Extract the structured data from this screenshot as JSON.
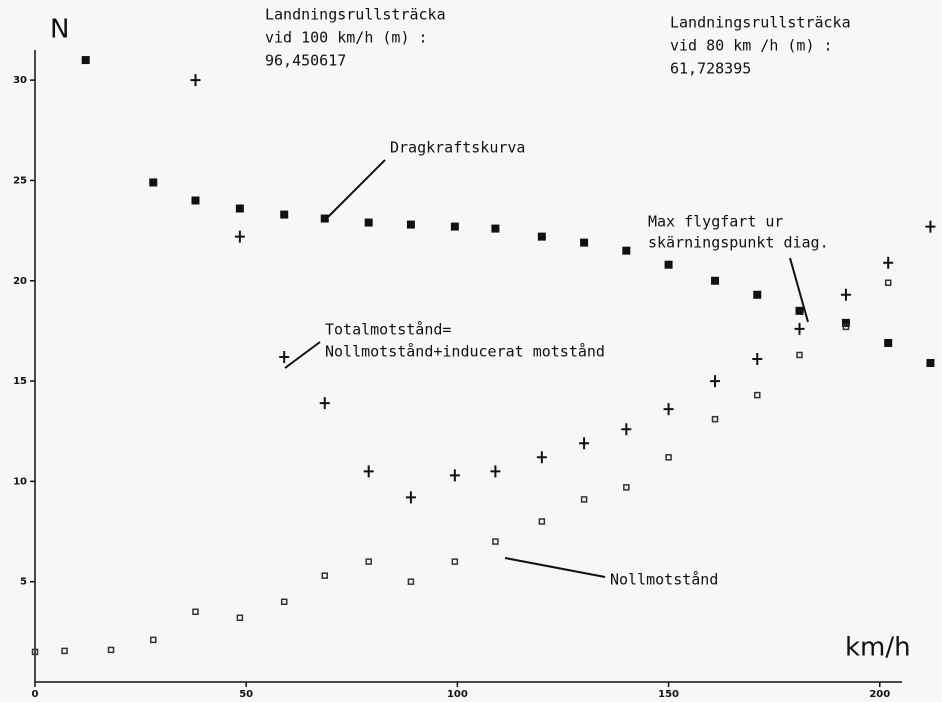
{
  "chart_data": {
    "type": "scatter",
    "y_label": "N",
    "x_label": "km/h",
    "annotations": {
      "landing_100": [
        "Landningsrullsträcka",
        "vid 100 km/h (m) :",
        "96,450617"
      ],
      "landing_80": [
        "Landningsrullsträcka",
        "vid 80 km /h (m) :",
        "61,728395"
      ],
      "drag": "Dragkraftskurva",
      "max_speed": [
        "Max flygfart ur",
        "skärningspunkt diag."
      ],
      "total": [
        "Totalmotstånd=",
        "Nollmotstånd+inducerat motstånd"
      ],
      "zero": "Nollmotstånd"
    },
    "xlim": [
      0,
      210
    ],
    "ylim": [
      0,
      32
    ],
    "xticks": [
      0,
      50,
      100,
      150,
      200
    ],
    "yticks": [
      5,
      10,
      15,
      20,
      25,
      30
    ],
    "series": [
      {
        "name": "Dragkraftskurva",
        "color": "#111111",
        "marker": "square",
        "x": [
          12,
          28,
          38,
          48.5,
          59,
          68.6,
          79,
          89,
          99.4,
          109,
          120,
          130,
          140,
          150,
          161,
          171,
          181,
          192,
          202,
          212
        ],
        "y": [
          31,
          24.9,
          24,
          23.6,
          23.3,
          23.1,
          22.9,
          22.8,
          22.7,
          22.6,
          22.2,
          21.9,
          21.5,
          20.8,
          20,
          19.3,
          18.5,
          17.9,
          16.9,
          15.9
        ]
      },
      {
        "name": "Totalmotstånd",
        "color": "#111111",
        "marker": "plus",
        "x": [
          38,
          48.5,
          59,
          68.6,
          79,
          89,
          99.4,
          109,
          120,
          130,
          140,
          150,
          161,
          171,
          181,
          192,
          202,
          212
        ],
        "y": [
          30,
          22.2,
          16.2,
          13.9,
          10.5,
          9.2,
          10.3,
          10.5,
          11.2,
          11.9,
          12.6,
          13.6,
          15,
          16.1,
          17.6,
          19.3,
          20.9,
          22.7
        ]
      },
      {
        "name": "Nollmotstånd",
        "color": "#333333",
        "marker": "small-square",
        "x": [
          0,
          7,
          18,
          28,
          38,
          48.5,
          59,
          68.6,
          79,
          89,
          99.4,
          109,
          120,
          130,
          140,
          150,
          161,
          171,
          181,
          192,
          202
        ],
        "y": [
          1.5,
          1.55,
          1.6,
          2.1,
          3.5,
          3.2,
          4,
          5.3,
          6,
          5,
          6,
          7,
          8,
          9.1,
          9.7,
          11.2,
          13.1,
          14.3,
          16.3,
          17.7,
          19.9
        ]
      }
    ]
  }
}
